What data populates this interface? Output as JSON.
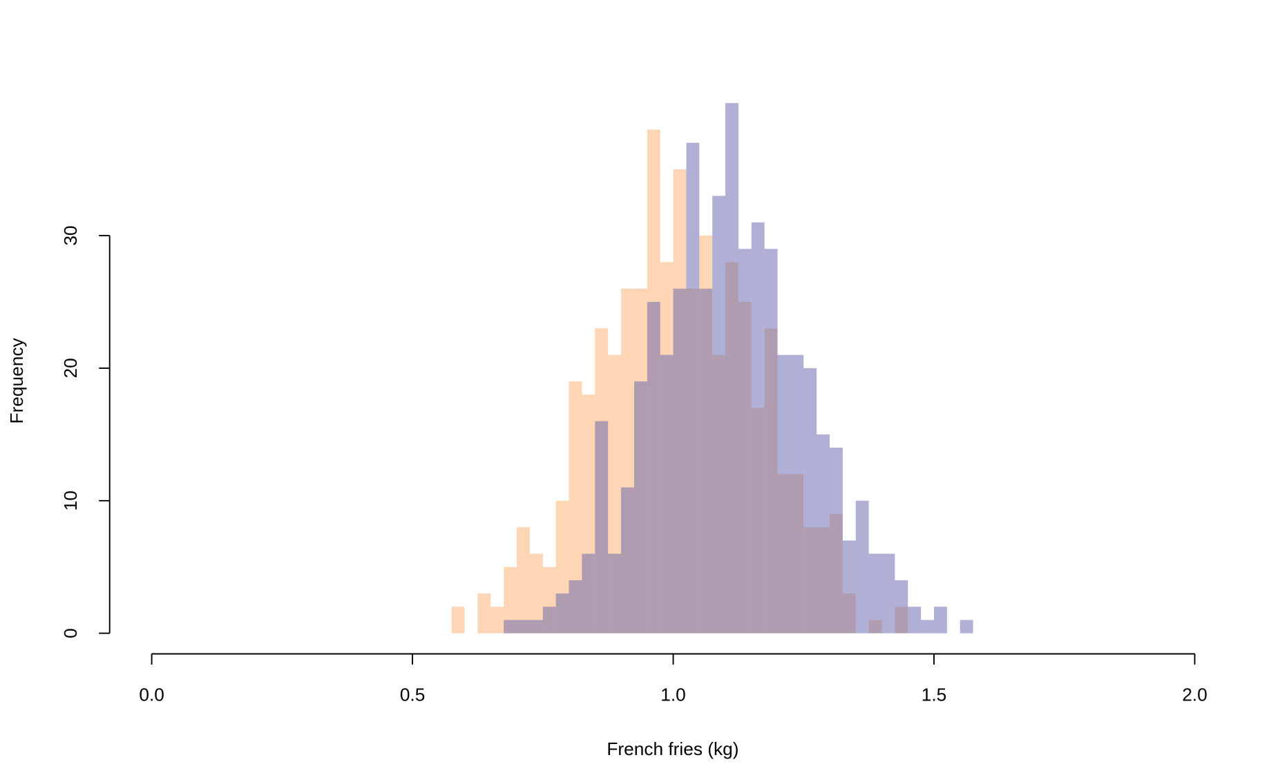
{
  "chart_data": {
    "type": "histogram",
    "x_label": "French fries (kg)",
    "y_label": "Frequency",
    "bins": [
      0.575,
      0.6,
      0.625,
      0.65,
      0.675,
      0.7,
      0.725,
      0.75,
      0.775,
      0.8,
      0.825,
      0.85,
      0.875,
      0.9,
      0.925,
      0.95,
      0.975,
      1.0,
      1.025,
      1.05,
      1.075,
      1.1,
      1.125,
      1.15,
      1.175,
      1.2,
      1.225,
      1.25,
      1.275,
      1.3,
      1.325,
      1.35,
      1.375,
      1.4,
      1.425,
      1.45,
      1.475,
      1.5,
      1.525,
      1.55,
      1.575
    ],
    "series": [
      {
        "color": "#fdae6b",
        "values": [
          2,
          0,
          3,
          2,
          5,
          8,
          6,
          5,
          10,
          19,
          18,
          23,
          21,
          26,
          26,
          38,
          28,
          35,
          26,
          30,
          21,
          28,
          25,
          17,
          23,
          12,
          12,
          8,
          8,
          9,
          3,
          0,
          1,
          0,
          2,
          0,
          0,
          0,
          0,
          0
        ]
      },
      {
        "color": "#6161ad",
        "values": [
          0,
          0,
          0,
          0,
          1,
          1,
          1,
          2,
          3,
          4,
          6,
          16,
          6,
          11,
          19,
          25,
          21,
          26,
          37,
          26,
          33,
          40,
          29,
          31,
          29,
          21,
          21,
          20,
          15,
          14,
          7,
          10,
          6,
          6,
          4,
          2,
          1,
          2,
          0,
          1
        ]
      }
    ],
    "opacity": 0.5,
    "xlim": [
      0,
      2
    ],
    "xticks": [
      {
        "value": 0,
        "label": "0.0"
      },
      0.5,
      {
        "value": 1,
        "label": "1.0"
      },
      1.5,
      {
        "value": 2,
        "label": "2.0"
      }
    ],
    "ylim": [
      0,
      40
    ],
    "yticks": [
      0,
      10,
      20,
      30
    ]
  }
}
